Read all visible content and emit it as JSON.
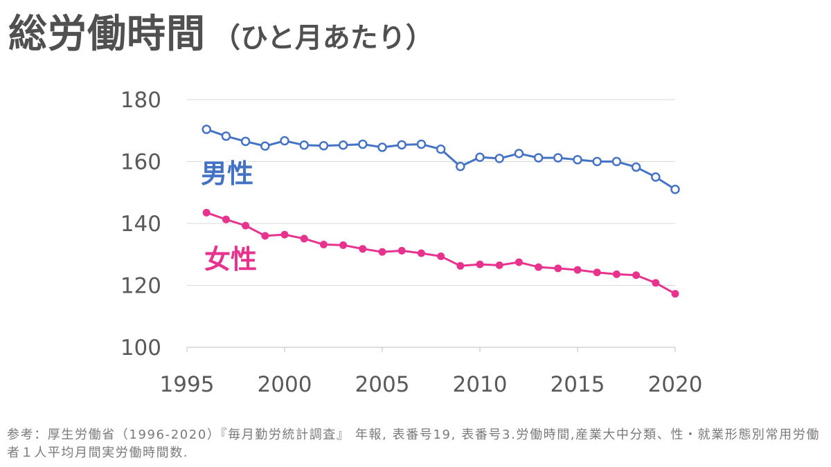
{
  "title": {
    "main": "総労働時間",
    "sub": "（ひと月あたり）"
  },
  "colors": {
    "male": "#4472c4",
    "female": "#e8338e",
    "axis_text": "#595959",
    "grid": "#d9d9d9"
  },
  "chart_data": {
    "type": "line",
    "title": "総労働時間（ひと月あたり）",
    "xlabel": "",
    "ylabel": "",
    "x": [
      1996,
      1997,
      1998,
      1999,
      2000,
      2001,
      2002,
      2003,
      2004,
      2005,
      2006,
      2007,
      2008,
      2009,
      2010,
      2011,
      2012,
      2013,
      2014,
      2015,
      2016,
      2017,
      2018,
      2019,
      2020
    ],
    "xticks": [
      "1995",
      "2000",
      "2005",
      "2010",
      "2015",
      "2020"
    ],
    "yticks": [
      "100",
      "120",
      "140",
      "160",
      "180"
    ],
    "xlim": [
      1995,
      2020
    ],
    "ylim": [
      100,
      180
    ],
    "grid": true,
    "series": [
      {
        "name": "男性",
        "marker": "open-circle",
        "values": [
          170.4,
          168.2,
          166.5,
          165.0,
          166.7,
          165.3,
          165.1,
          165.3,
          165.6,
          164.6,
          165.4,
          165.6,
          164.0,
          158.4,
          161.4,
          161.0,
          162.6,
          161.2,
          161.2,
          160.6,
          160.0,
          160.0,
          158.2,
          155.0,
          151.0
        ]
      },
      {
        "name": "女性",
        "marker": "filled-circle",
        "values": [
          143.5,
          141.3,
          139.3,
          136.0,
          136.4,
          135.1,
          133.2,
          133.0,
          131.8,
          130.8,
          131.2,
          130.4,
          129.4,
          126.3,
          126.8,
          126.5,
          127.5,
          125.9,
          125.5,
          125.0,
          124.2,
          123.6,
          123.3,
          120.8,
          117.3
        ]
      }
    ]
  },
  "footnote": "参考：厚生労働省（1996-2020）『毎月勤労統計調査』 年報, 表番号19, 表番号3.労働時間,産業大中分類、性・就業形態別常用労働者１人平均月間実労働時間数."
}
